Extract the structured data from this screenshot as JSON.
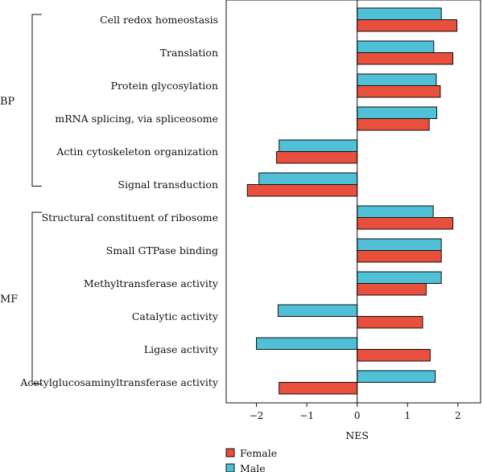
{
  "chart_data": {
    "type": "bar",
    "orientation": "horizontal",
    "xlabel": "NES",
    "ylabel": "",
    "xlim": [
      -2.6,
      2.45
    ],
    "xticks": [
      -2,
      -1,
      0,
      1,
      2
    ],
    "xtick_labels": [
      "−2",
      "−1",
      "0",
      "1",
      "2"
    ],
    "categories": [
      "Cell redox homeostasis",
      "Translation",
      "Protein glycosylation",
      "mRNA splicing, via spliceosome",
      "Actin cytoskeleton organization",
      "Signal transduction",
      "Structural constituent of ribosome",
      "Small GTPase binding",
      "Methyltransferase activity",
      "Catalytic activity",
      "Ligase activity",
      "Acetylglucosaminyltransferase activity"
    ],
    "series": [
      {
        "name": "Male",
        "color": "#4fc0d6",
        "values": [
          1.67,
          1.52,
          1.57,
          1.58,
          -1.55,
          -1.95,
          1.51,
          1.67,
          1.67,
          -1.57,
          -2.0,
          1.55
        ]
      },
      {
        "name": "Female",
        "color": "#e8503d",
        "values": [
          1.98,
          1.9,
          1.65,
          1.43,
          -1.6,
          -2.18,
          1.9,
          1.67,
          1.37,
          1.3,
          1.45,
          -1.55
        ]
      }
    ],
    "groups": [
      {
        "label": "BP",
        "from": 0,
        "to": 5
      },
      {
        "label": "MF",
        "from": 6,
        "to": 11
      }
    ],
    "legend": {
      "position": "bottom-left",
      "entries": [
        "Female",
        "Male"
      ]
    },
    "grid": false
  }
}
